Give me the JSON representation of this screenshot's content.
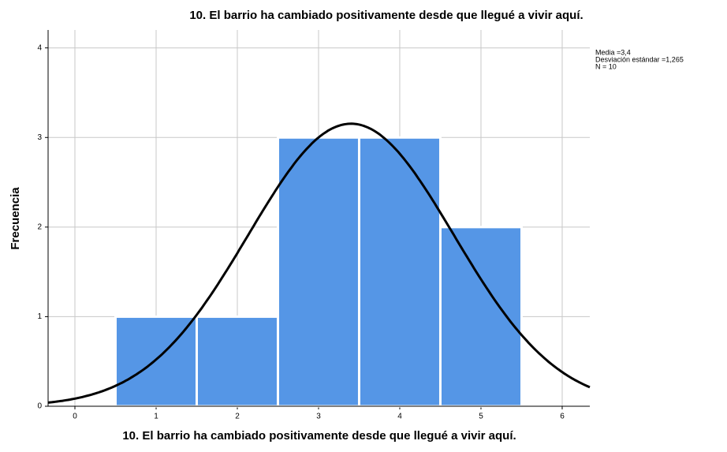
{
  "chart_data": {
    "type": "histogram",
    "title": "10. El barrio ha cambiado positivamente desde que llegué a vivir aquí.",
    "x_label": "10. El barrio ha cambiado positivamente desde que llegué a vivir aquí.",
    "y_label": "Frecuencia",
    "bins": [
      0.5,
      1.5,
      2.5,
      3.5,
      4.5,
      5.5
    ],
    "values": [
      1,
      1,
      3,
      3,
      2
    ],
    "color": "#5596e6",
    "curve_color": "#000000",
    "xlim": [
      -0.33,
      6.34
    ],
    "xticks": [
      0,
      1,
      2,
      3,
      4,
      5,
      6
    ],
    "ylim": [
      0,
      4.2
    ],
    "yticks": [
      0,
      1,
      2,
      3,
      4
    ],
    "grid": true,
    "annotations": [
      {
        "value": 3.4,
        "label": "Media =3,4"
      },
      {
        "value": 1.265,
        "label": "Desviación estándar =1,265"
      },
      {
        "value": 10,
        "label": "N = 10"
      }
    ]
  }
}
